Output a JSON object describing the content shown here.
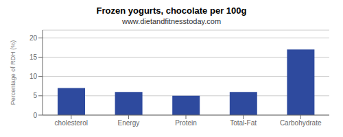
{
  "chart_data": {
    "type": "bar",
    "title": "Frozen yogurts, chocolate per 100g",
    "subtitle": "www.dietandfitnesstoday.com",
    "ylabel": "Percentage of RDH (%)",
    "categories": [
      "cholesterol",
      "Energy",
      "Protein",
      "Total-Fat",
      "Carbohydrate"
    ],
    "values": [
      7.0,
      6.0,
      5.0,
      6.0,
      17.0
    ],
    "color": "#2e4a9e",
    "ylim": [
      0,
      22
    ],
    "yticks": [
      0,
      5,
      10,
      15,
      20
    ],
    "grid": true
  }
}
